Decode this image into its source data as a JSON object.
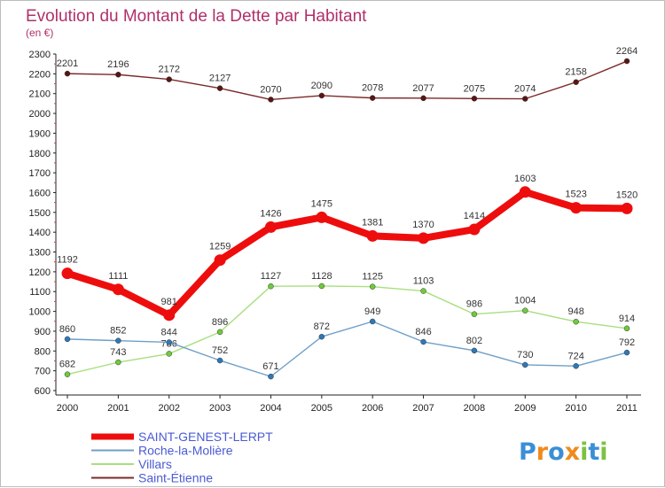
{
  "chart_data": {
    "type": "line",
    "title": "Evolution du Montant de la Dette par Habitant",
    "subtitle": "(en €)",
    "xlabel": "",
    "ylabel": "",
    "categories": [
      "2000",
      "2001",
      "2002",
      "2003",
      "2004",
      "2005",
      "2006",
      "2007",
      "2008",
      "2009",
      "2010",
      "2011"
    ],
    "ylim": [
      600,
      2300
    ],
    "yticks": [
      600,
      700,
      800,
      900,
      1000,
      1100,
      1200,
      1300,
      1400,
      1500,
      1600,
      1700,
      1800,
      1900,
      2000,
      2100,
      2200,
      2300
    ],
    "grid": false,
    "legend_position": "bottom-left",
    "series": [
      {
        "name": "Saint-Étienne",
        "color": "#7b2a2a",
        "marker": "#5a1414",
        "thick": false,
        "values": [
          2201,
          2196,
          2172,
          2127,
          2070,
          2090,
          2078,
          2077,
          2075,
          2074,
          2158,
          2264
        ]
      },
      {
        "name": "Villars",
        "color": "#a8df7f",
        "marker": "#6fcb3a",
        "thick": false,
        "values": [
          682,
          743,
          786,
          896,
          1127,
          1128,
          1125,
          1103,
          986,
          1004,
          948,
          914
        ]
      },
      {
        "name": "Roche-la-Molière",
        "color": "#6f9fc7",
        "marker": "#2d79b8",
        "thick": false,
        "values": [
          860,
          852,
          844,
          752,
          671,
          872,
          949,
          846,
          802,
          730,
          724,
          792
        ]
      },
      {
        "name": "SAINT-GENEST-LERPT",
        "color": "#ee0d0d",
        "marker": "#ee0d0d",
        "thick": true,
        "values": [
          1192,
          1111,
          981,
          1259,
          1426,
          1475,
          1381,
          1370,
          1414,
          1603,
          1523,
          1520
        ]
      }
    ],
    "legend": [
      {
        "name": "SAINT-GENEST-LERPT",
        "color": "#ee0d0d",
        "thick": true
      },
      {
        "name": "Roche-la-Molière",
        "color": "#6f9fc7",
        "thick": false
      },
      {
        "name": "Villars",
        "color": "#a8df7f",
        "thick": false
      },
      {
        "name": "Saint-Étienne",
        "color": "#7b2a2a",
        "thick": false
      }
    ]
  },
  "branding": {
    "logo_letters": [
      {
        "char": "P",
        "color": "#3a8fd6"
      },
      {
        "char": "r",
        "color": "#f08a1c"
      },
      {
        "char": "o",
        "color": "#3a8fd6"
      },
      {
        "char": "x",
        "color": "#f08a1c"
      },
      {
        "char": "i",
        "color": "#7cc242"
      },
      {
        "char": "t",
        "color": "#3a8fd6"
      },
      {
        "char": "i",
        "color": "#7cc242"
      }
    ]
  }
}
